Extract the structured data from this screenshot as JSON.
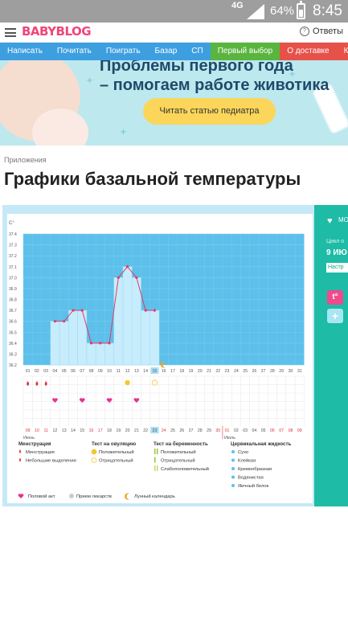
{
  "status_bar": {
    "network": "4G",
    "battery": "64%",
    "time": "8:45"
  },
  "header": {
    "logo": "BABYBLOG",
    "answers": "Ответы"
  },
  "nav": [
    "Написать",
    "Почитать",
    "Поиграть",
    "Базар",
    "СП",
    "Первый выбор",
    "О доставке",
    "Конкурс уже"
  ],
  "banner": {
    "line1": "Проблемы первого года",
    "line2": "– помогаем работе животика",
    "cta": "Читать статью педиатра"
  },
  "breadcrumb": "Приложения",
  "page_title": "Графики базальной температуры",
  "side_panel": {
    "mode_label": "МО",
    "cycle_label": "Цикл о",
    "date": "9 ИЮ",
    "settings_button": "Настр"
  },
  "chart_data": {
    "type": "line",
    "y_unit": "C°",
    "ylim": [
      36.2,
      37.4
    ],
    "y_ticks": [
      "37.4",
      "37.3",
      "37.2",
      "37.1",
      "37.0",
      "36.9",
      "36.8",
      "36.7",
      "36.6",
      "36.5",
      "36.4",
      "36.3",
      "36.2"
    ],
    "x_labels": [
      "01",
      "02",
      "03",
      "04",
      "05",
      "06",
      "07",
      "08",
      "09",
      "10",
      "11",
      "12",
      "13",
      "14",
      "15",
      "16",
      "17",
      "18",
      "19",
      "20",
      "21",
      "22",
      "23",
      "24",
      "25",
      "26",
      "27",
      "28",
      "29",
      "30",
      "31"
    ],
    "temperatures": [
      {
        "day": "04",
        "value": 36.6
      },
      {
        "day": "05",
        "value": 36.6
      },
      {
        "day": "06",
        "value": 36.7
      },
      {
        "day": "07",
        "value": 36.7
      },
      {
        "day": "08",
        "value": 36.4
      },
      {
        "day": "09",
        "value": 36.4
      },
      {
        "day": "10",
        "value": 36.4
      },
      {
        "day": "11",
        "value": 37.0
      },
      {
        "day": "12",
        "value": 37.1
      },
      {
        "day": "13",
        "value": 37.0
      },
      {
        "day": "14",
        "value": 36.7
      },
      {
        "day": "15",
        "value": 36.7
      }
    ],
    "highlight_day": "15",
    "menstruation_days": [
      "01",
      "02",
      "03"
    ],
    "intercourse_days": [
      "04",
      "07",
      "10",
      "13"
    ],
    "ovulation_positive_day": "12",
    "ovulation_negative_day": "15",
    "lunar_day": "16",
    "calendar_days": [
      "09",
      "10",
      "11",
      "12",
      "13",
      "14",
      "15",
      "16",
      "17",
      "18",
      "19",
      "20",
      "21",
      "22",
      "23",
      "24",
      "25",
      "26",
      "27",
      "28",
      "29",
      "30",
      "01",
      "02",
      "03",
      "04",
      "05",
      "06",
      "07",
      "08",
      "09"
    ],
    "calendar_red_days": [
      "09",
      "10",
      "11",
      "16",
      "17",
      "24",
      "30",
      "01",
      "06",
      "07",
      "08"
    ],
    "calendar_highlight": "23",
    "month_labels": [
      "Июнь",
      "Июль"
    ]
  },
  "legend": {
    "menstruation": {
      "title": "Менструация",
      "items": [
        "Менструация",
        "Небольшие выделения"
      ]
    },
    "ovulation_test": {
      "title": "Тест на овуляцию",
      "items": [
        "Положительный",
        "Отрицательный"
      ]
    },
    "pregnancy_test": {
      "title": "Тест на беременность",
      "items": [
        "Положительный",
        "Отрицательный",
        "Слабоположительный"
      ]
    },
    "cervical": {
      "title": "Цервикальная жидкость",
      "items": [
        "Сухо",
        "Клейкая",
        "Кремообразная",
        "Водянистая",
        "Яичный белок"
      ]
    },
    "bottom": [
      "Половой акт",
      "Прием лекарств",
      "Лунный календарь"
    ]
  },
  "colors": {
    "chart_bg": "#5cc0ea",
    "bar": "#c7ecfb",
    "line": "#e23a6b",
    "accent_pink": "#e23a6b",
    "teal": "#1ebba6"
  }
}
